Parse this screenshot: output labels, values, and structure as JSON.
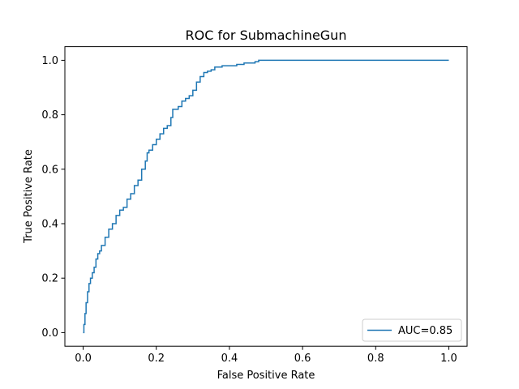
{
  "chart_data": {
    "type": "line",
    "title": "ROC for SubmachineGun",
    "xlabel": "False Positive Rate",
    "ylabel": "True Positive Rate",
    "xlim": [
      -0.05,
      1.05
    ],
    "ylim": [
      -0.05,
      1.05
    ],
    "xticks": [
      "0.0",
      "0.2",
      "0.4",
      "0.6",
      "0.8",
      "1.0"
    ],
    "yticks": [
      "0.0",
      "0.2",
      "0.4",
      "0.6",
      "0.8",
      "1.0"
    ],
    "xtick_values": [
      0.0,
      0.2,
      0.4,
      0.6,
      0.8,
      1.0
    ],
    "ytick_values": [
      0.0,
      0.2,
      0.4,
      0.6,
      0.8,
      1.0
    ],
    "grid": false,
    "legend_position": "lower-right",
    "series": [
      {
        "name": "AUC=0.85",
        "color": "#1f77b4",
        "x": [
          0.0,
          0.002,
          0.005,
          0.008,
          0.012,
          0.016,
          0.02,
          0.025,
          0.03,
          0.035,
          0.04,
          0.045,
          0.05,
          0.06,
          0.07,
          0.08,
          0.09,
          0.1,
          0.11,
          0.12,
          0.13,
          0.14,
          0.15,
          0.16,
          0.17,
          0.175,
          0.18,
          0.19,
          0.2,
          0.21,
          0.22,
          0.23,
          0.24,
          0.245,
          0.25,
          0.26,
          0.27,
          0.28,
          0.29,
          0.3,
          0.31,
          0.32,
          0.33,
          0.34,
          0.35,
          0.36,
          0.38,
          0.4,
          0.42,
          0.44,
          0.47,
          0.48,
          0.6,
          0.8,
          1.0
        ],
        "y": [
          0.0,
          0.03,
          0.07,
          0.11,
          0.15,
          0.18,
          0.2,
          0.22,
          0.24,
          0.27,
          0.29,
          0.3,
          0.32,
          0.35,
          0.38,
          0.4,
          0.43,
          0.45,
          0.46,
          0.49,
          0.51,
          0.54,
          0.56,
          0.6,
          0.63,
          0.66,
          0.67,
          0.69,
          0.71,
          0.73,
          0.75,
          0.76,
          0.79,
          0.82,
          0.82,
          0.83,
          0.85,
          0.86,
          0.87,
          0.89,
          0.92,
          0.94,
          0.955,
          0.96,
          0.965,
          0.975,
          0.98,
          0.98,
          0.985,
          0.99,
          0.995,
          1.0,
          1.0,
          1.0,
          1.0
        ]
      }
    ]
  }
}
